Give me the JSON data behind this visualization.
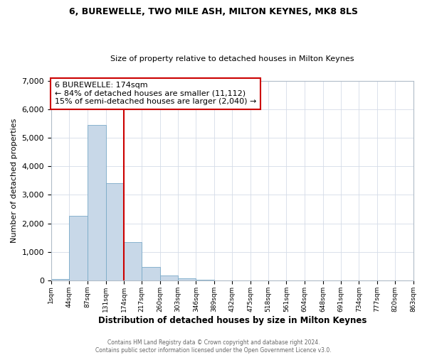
{
  "title": "6, BUREWELLE, TWO MILE ASH, MILTON KEYNES, MK8 8LS",
  "subtitle": "Size of property relative to detached houses in Milton Keynes",
  "xlabel": "Distribution of detached houses by size in Milton Keynes",
  "ylabel": "Number of detached properties",
  "bar_color": "#c8d8e8",
  "bar_edge_color": "#7aaac8",
  "vline_x": 174,
  "vline_color": "#cc0000",
  "bin_edges": [
    1,
    44,
    87,
    131,
    174,
    217,
    260,
    303,
    346,
    389,
    432,
    475,
    518,
    561,
    604,
    648,
    691,
    734,
    777,
    820,
    863
  ],
  "bar_heights": [
    50,
    2270,
    5450,
    3420,
    1350,
    460,
    175,
    75,
    30,
    0,
    0,
    0,
    0,
    0,
    0,
    0,
    0,
    0,
    0,
    0
  ],
  "ylim": [
    0,
    7000
  ],
  "yticks": [
    0,
    1000,
    2000,
    3000,
    4000,
    5000,
    6000,
    7000
  ],
  "annotation_title": "6 BUREWELLE: 174sqm",
  "annotation_line1": "← 84% of detached houses are smaller (11,112)",
  "annotation_line2": "15% of semi-detached houses are larger (2,040) →",
  "annotation_box_color": "#ffffff",
  "annotation_box_edge": "#cc0000",
  "footer_line1": "Contains HM Land Registry data © Crown copyright and database right 2024.",
  "footer_line2": "Contains public sector information licensed under the Open Government Licence v3.0.",
  "tick_labels": [
    "1sqm",
    "44sqm",
    "87sqm",
    "131sqm",
    "174sqm",
    "217sqm",
    "260sqm",
    "303sqm",
    "346sqm",
    "389sqm",
    "432sqm",
    "475sqm",
    "518sqm",
    "561sqm",
    "604sqm",
    "648sqm",
    "691sqm",
    "734sqm",
    "777sqm",
    "820sqm",
    "863sqm"
  ]
}
